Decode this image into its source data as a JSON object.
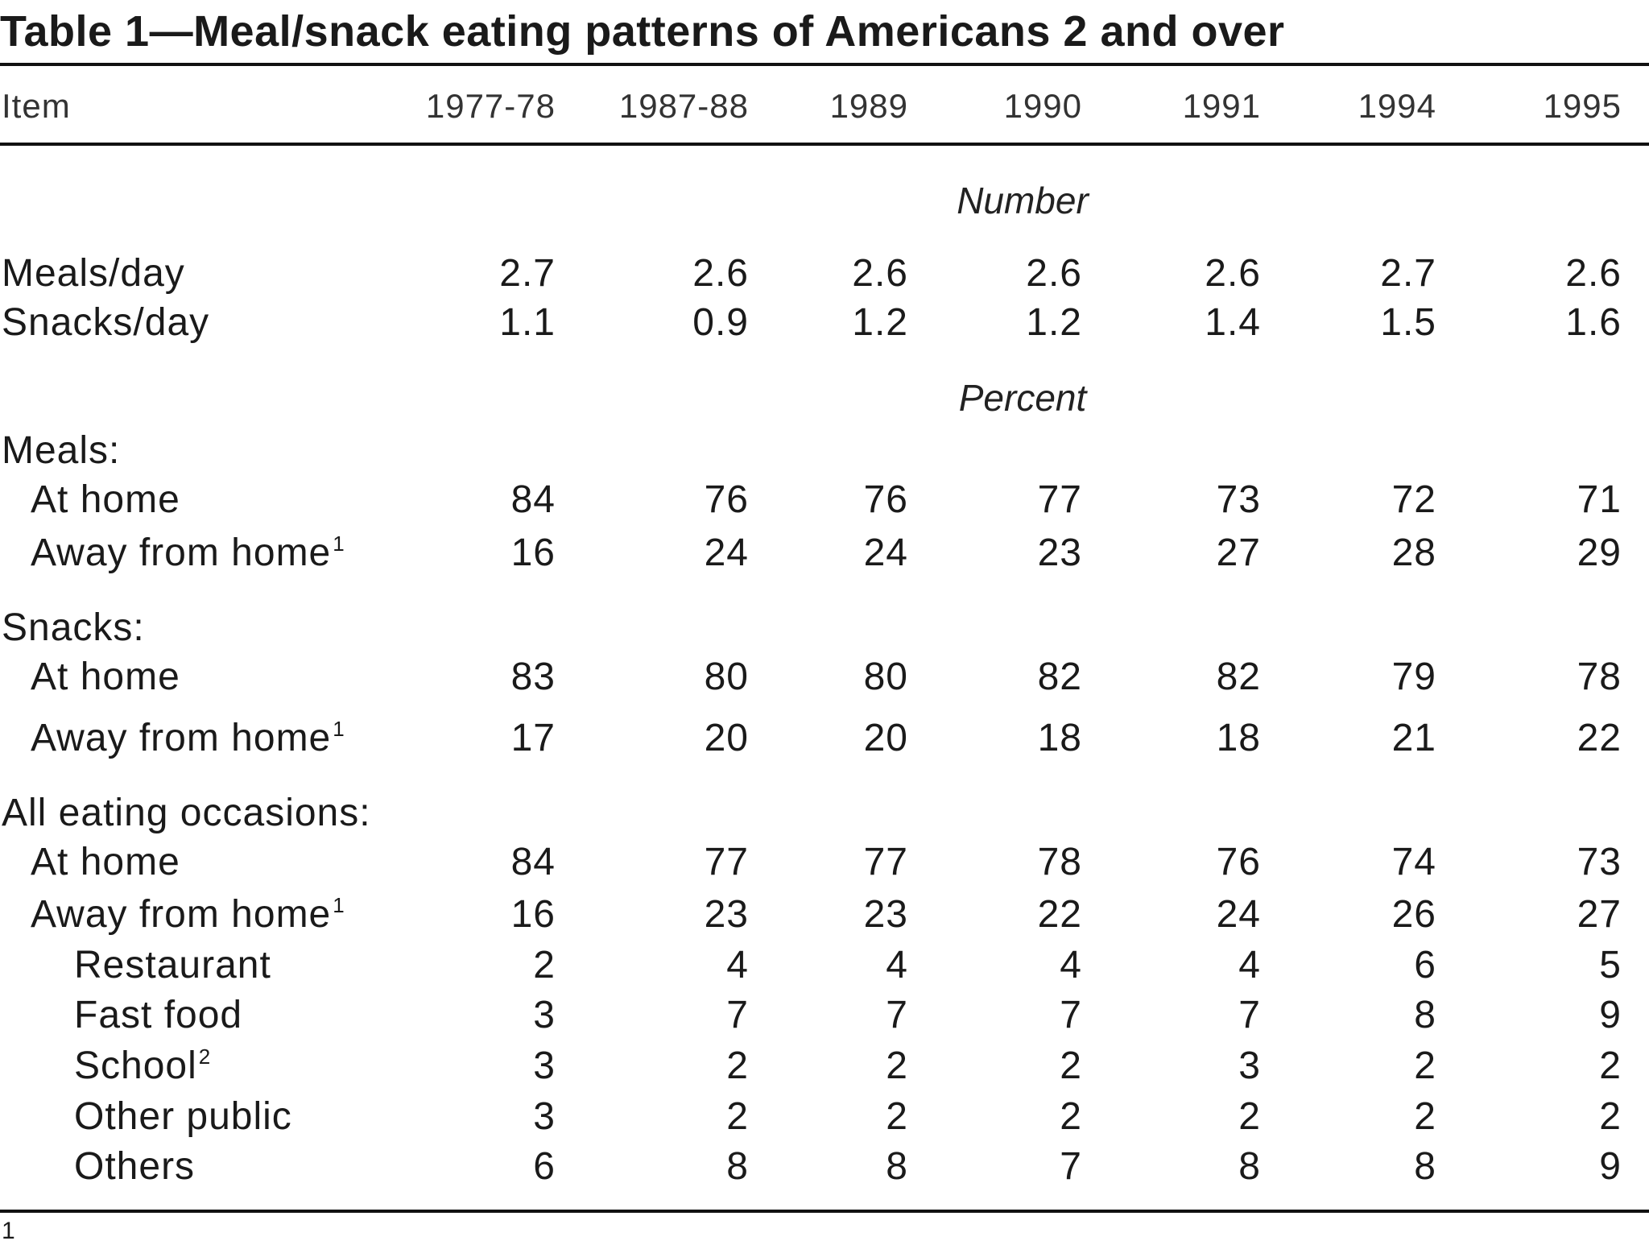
{
  "title": "Table 1—Meal/snack eating patterns of Americans 2 and over",
  "columns": [
    "Item",
    "1977-78",
    "1987-88",
    "1989",
    "1990",
    "1991",
    "1994",
    "1995"
  ],
  "sections": {
    "number": "Number",
    "percent": "Percent"
  },
  "rows": {
    "meals_day": {
      "label": "Meals/day",
      "values": [
        "2.7",
        "2.6",
        "2.6",
        "2.6",
        "2.6",
        "2.7",
        "2.6"
      ]
    },
    "snacks_day": {
      "label": "Snacks/day",
      "values": [
        "1.1",
        "0.9",
        "1.2",
        "1.2",
        "1.4",
        "1.5",
        "1.6"
      ]
    },
    "meals_header": {
      "label": "Meals:"
    },
    "meals_home": {
      "label": "At home",
      "values": [
        "84",
        "76",
        "76",
        "77",
        "73",
        "72",
        "71"
      ]
    },
    "meals_away": {
      "label": "Away from home",
      "sup": "1",
      "values": [
        "16",
        "24",
        "24",
        "23",
        "27",
        "28",
        "29"
      ]
    },
    "snacks_header": {
      "label": "Snacks:"
    },
    "snacks_home": {
      "label": "At home",
      "values": [
        "83",
        "80",
        "80",
        "82",
        "82",
        "79",
        "78"
      ]
    },
    "snacks_away": {
      "label": "Away from home",
      "sup": "1",
      "values": [
        "17",
        "20",
        "20",
        "18",
        "18",
        "21",
        "22"
      ]
    },
    "all_header": {
      "label": "All eating occasions:"
    },
    "all_home": {
      "label": "At home",
      "values": [
        "84",
        "77",
        "77",
        "78",
        "76",
        "74",
        "73"
      ]
    },
    "all_away": {
      "label": "Away from home",
      "sup": "1",
      "values": [
        "16",
        "23",
        "23",
        "22",
        "24",
        "26",
        "27"
      ]
    },
    "restaurant": {
      "label": "Restaurant",
      "values": [
        "2",
        "4",
        "4",
        "4",
        "4",
        "6",
        "5"
      ]
    },
    "fast_food": {
      "label": "Fast food",
      "values": [
        "3",
        "7",
        "7",
        "7",
        "7",
        "8",
        "9"
      ]
    },
    "school": {
      "label": "School",
      "sup": "2",
      "values": [
        "3",
        "2",
        "2",
        "2",
        "3",
        "2",
        "2"
      ]
    },
    "other_public": {
      "label": "Other public",
      "values": [
        "3",
        "2",
        "2",
        "2",
        "2",
        "2",
        "2"
      ]
    },
    "others": {
      "label": "Others",
      "values": [
        "6",
        "8",
        "8",
        "7",
        "8",
        "8",
        "9"
      ]
    }
  },
  "footnote_mark": "1"
}
